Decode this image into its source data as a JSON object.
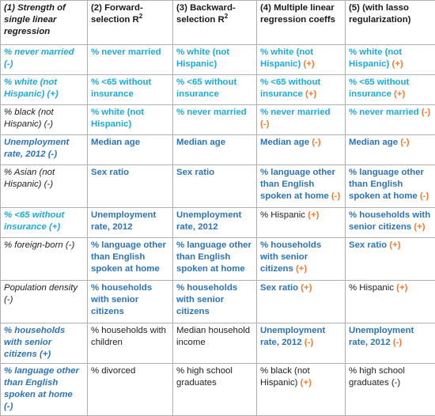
{
  "colors": {
    "cyan": "#1fa9d8",
    "blue": "#2e74b5",
    "black": "#222222",
    "orange": "#ed7d31",
    "border": "#b0b0b0"
  },
  "headers": [
    {
      "text": "(1) Strength of single linear regression",
      "sup": ""
    },
    {
      "text": "(2) Forward-selection R",
      "sup": "2"
    },
    {
      "text": "(3) Backward-selection R",
      "sup": "2"
    },
    {
      "text": "(4) Multiple linear regression coeffs",
      "sup": ""
    },
    {
      "text": "(5) (with lasso regularization)",
      "sup": ""
    }
  ],
  "rows": [
    [
      {
        "text": "% never married (-)",
        "style": "it b cyan"
      },
      {
        "text": "% never married",
        "style": "b cyan"
      },
      {
        "text": "% white (not Hispanic)",
        "style": "b cyan"
      },
      {
        "text": "% white (not Hispanic)",
        "style": "b cyan",
        "sign": " (+)"
      },
      {
        "text": "% white (not Hispanic)",
        "style": "b cyan",
        "sign": " (+)"
      }
    ],
    [
      {
        "text": "% white (not Hispanic) (+)",
        "style": "it b cyan"
      },
      {
        "text": "% <65 without insurance",
        "style": "b cyan"
      },
      {
        "text": "% <65 without insurance",
        "style": "b cyan"
      },
      {
        "text": "% <65 without insurance",
        "style": "b cyan",
        "sign": " (+)"
      },
      {
        "text": "% <65 without insurance",
        "style": "b cyan",
        "sign": " (+)"
      }
    ],
    [
      {
        "text": "% black (not Hispanic) (-)",
        "style": "it black"
      },
      {
        "text": "% white (not Hispanic)",
        "style": "b cyan"
      },
      {
        "text": "% never married",
        "style": "b cyan"
      },
      {
        "text": "% never married",
        "style": "b cyan",
        "sign": " (-)"
      },
      {
        "text": "% never married",
        "style": "b cyan",
        "sign": " (-)"
      }
    ],
    [
      {
        "text": "Unemployment rate, 2012 (-)",
        "style": "it b blue"
      },
      {
        "text": "Median age",
        "style": "b blue"
      },
      {
        "text": "Median age",
        "style": "b blue"
      },
      {
        "text": "Median age",
        "style": "b blue",
        "sign": " (-)"
      },
      {
        "text": "Median age",
        "style": "b blue",
        "sign": " (-)"
      }
    ],
    [
      {
        "text": "% Asian (not Hispanic) (-)",
        "style": "it black"
      },
      {
        "text": "Sex ratio",
        "style": "b blue"
      },
      {
        "text": "Sex ratio",
        "style": "b blue"
      },
      {
        "text": "% language other than English spoken at home",
        "style": "b blue",
        "sign": " (-)"
      },
      {
        "text": "% language other than English spoken at home",
        "style": "b blue",
        "sign": " (-)"
      }
    ],
    [
      {
        "text": "% <65 without insurance (+)",
        "style": "it b cyan"
      },
      {
        "text": "Unemployment rate, 2012",
        "style": "b blue"
      },
      {
        "text": "Unemployment rate, 2012",
        "style": "b blue"
      },
      {
        "text": "% Hispanic",
        "style": "black",
        "sign": " (+)"
      },
      {
        "text": "% households with senior citizens",
        "style": "b blue",
        "sign": " (+)"
      }
    ],
    [
      {
        "text": "% foreign-born (-)",
        "style": "it black"
      },
      {
        "text": "% language other than English spoken at home",
        "style": "b blue"
      },
      {
        "text": "% language other than English spoken at home",
        "style": "b blue"
      },
      {
        "text": "% households with senior citizens",
        "style": "b blue",
        "sign": " (+)"
      },
      {
        "text": "Sex ratio",
        "style": "b blue",
        "sign": " (+)"
      }
    ],
    [
      {
        "text": "Population density (-)",
        "style": "it black"
      },
      {
        "text": "% households with senior citizens",
        "style": "b blue"
      },
      {
        "text": "% households with senior citizens",
        "style": "b blue"
      },
      {
        "text": "Sex ratio",
        "style": "b blue",
        "sign": " (+)"
      },
      {
        "text": "% Hispanic",
        "style": "black",
        "sign": " (+)"
      }
    ],
    [
      {
        "text": "% households with senior citizens (+)",
        "style": "it b blue"
      },
      {
        "text": "% households with children",
        "style": "black"
      },
      {
        "text": "Median household income",
        "style": "black"
      },
      {
        "text": "Unemployment rate, 2012",
        "style": "b blue",
        "sign": " (-)"
      },
      {
        "text": "Unemployment rate, 2012",
        "style": "b blue",
        "sign": " (-)"
      }
    ],
    [
      {
        "text": "% language other than English spoken at home (-)",
        "style": "it b blue"
      },
      {
        "text": "% divorced",
        "style": "black"
      },
      {
        "text": "% high school graduates",
        "style": "black"
      },
      {
        "text": "% black (not Hispanic)",
        "style": "black",
        "sign": " (+)"
      },
      {
        "text": "% high school graduates (-)",
        "style": "black"
      }
    ]
  ]
}
